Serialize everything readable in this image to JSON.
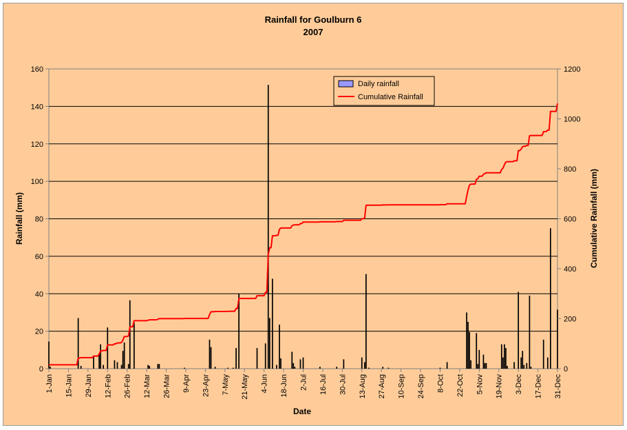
{
  "chart_data": {
    "type": "bar+line",
    "title": "Rainfall for Goulburn 6",
    "subtitle": "2007",
    "xlabel": "Date",
    "ylabel": "Rainfall (mm)",
    "y2label": "Cumulative Rainfall (mm)",
    "ylim": [
      0,
      160
    ],
    "yticks": [
      "0",
      "20",
      "40",
      "60",
      "80",
      "100",
      "120",
      "140",
      "160"
    ],
    "y2lim": [
      0,
      1200
    ],
    "y2ticks": [
      "0",
      "200",
      "400",
      "600",
      "800",
      "1000",
      "1200"
    ],
    "xlim": [
      1,
      365
    ],
    "xtick_labels": [
      "1-Jan",
      "15-Jan",
      "29-Jan",
      "12-Feb",
      "26-Feb",
      "12-Mar",
      "26-Mar",
      "9-Apr",
      "23-Apr",
      "7-May",
      "21-May",
      "4-Jun",
      "18-Jun",
      "2-Jul",
      "16-Jul",
      "30-Jul",
      "13-Aug",
      "27-Aug",
      "10-Sep",
      "24-Sep",
      "8-Oct",
      "22-Oct",
      "5-Nov",
      "19-Nov",
      "3-Dec",
      "17-Dec",
      "31-Dec"
    ],
    "xtick_days": [
      1,
      15,
      29,
      43,
      57,
      71,
      85,
      99,
      113,
      127,
      141,
      155,
      169,
      183,
      197,
      211,
      225,
      239,
      253,
      267,
      281,
      295,
      309,
      323,
      337,
      351,
      365
    ],
    "grid": true,
    "legend_position": "top-center",
    "series": [
      {
        "name": "Daily rainfall",
        "kind": "bar",
        "color": "#9999FF",
        "fill": "#000000",
        "points": [
          [
            1,
            14.5
          ],
          [
            2,
            1
          ],
          [
            22,
            27
          ],
          [
            24,
            1.5
          ],
          [
            33,
            6.5
          ],
          [
            37,
            7.5
          ],
          [
            38,
            13
          ],
          [
            40,
            2
          ],
          [
            43,
            22
          ],
          [
            48,
            4.5
          ],
          [
            50,
            3.5
          ],
          [
            53,
            2
          ],
          [
            54,
            9.5
          ],
          [
            55,
            14
          ],
          [
            58,
            2.5
          ],
          [
            59,
            36.5
          ],
          [
            62,
            24.5
          ],
          [
            72,
            2
          ],
          [
            73,
            1.5
          ],
          [
            79,
            2.5
          ],
          [
            80,
            2.5
          ],
          [
            98,
            0.5
          ],
          [
            116,
            15.5
          ],
          [
            117,
            11.5
          ],
          [
            120,
            1
          ],
          [
            129,
            0.5
          ],
          [
            133,
            0.5
          ],
          [
            135,
            11
          ],
          [
            137,
            40
          ],
          [
            150,
            11
          ],
          [
            156,
            13.5
          ],
          [
            158,
            151.5
          ],
          [
            159,
            27
          ],
          [
            161,
            48
          ],
          [
            164,
            2
          ],
          [
            166,
            23.5
          ],
          [
            167,
            5.5
          ],
          [
            175,
            9
          ],
          [
            176,
            3
          ],
          [
            177,
            1
          ],
          [
            181,
            5
          ],
          [
            183,
            6
          ],
          [
            195,
            1
          ],
          [
            207,
            1
          ],
          [
            212,
            5
          ],
          [
            225,
            6
          ],
          [
            227,
            3.5
          ],
          [
            228,
            50.5
          ],
          [
            230,
            0.5
          ],
          [
            240,
            1
          ],
          [
            244,
            0.5
          ],
          [
            281,
            0.5
          ],
          [
            286,
            3.5
          ],
          [
            300,
            30
          ],
          [
            301,
            25
          ],
          [
            302,
            19.5
          ],
          [
            303,
            4.5
          ],
          [
            307,
            19
          ],
          [
            308,
            2.5
          ],
          [
            309,
            10
          ],
          [
            312,
            7.5
          ],
          [
            313,
            3
          ],
          [
            314,
            3
          ],
          [
            325,
            13
          ],
          [
            326,
            6
          ],
          [
            327,
            13
          ],
          [
            328,
            11
          ],
          [
            329,
            1.5
          ],
          [
            334,
            3.5
          ],
          [
            337,
            41
          ],
          [
            339,
            6
          ],
          [
            340,
            9.5
          ],
          [
            341,
            2
          ],
          [
            343,
            3
          ],
          [
            345,
            39
          ],
          [
            346,
            1
          ],
          [
            355,
            15.5
          ],
          [
            358,
            6
          ],
          [
            360,
            75
          ],
          [
            365,
            31.5
          ]
        ]
      },
      {
        "name": "Cumulative Rainfall",
        "kind": "line",
        "axis": "right",
        "color": "#FF0000"
      }
    ]
  }
}
